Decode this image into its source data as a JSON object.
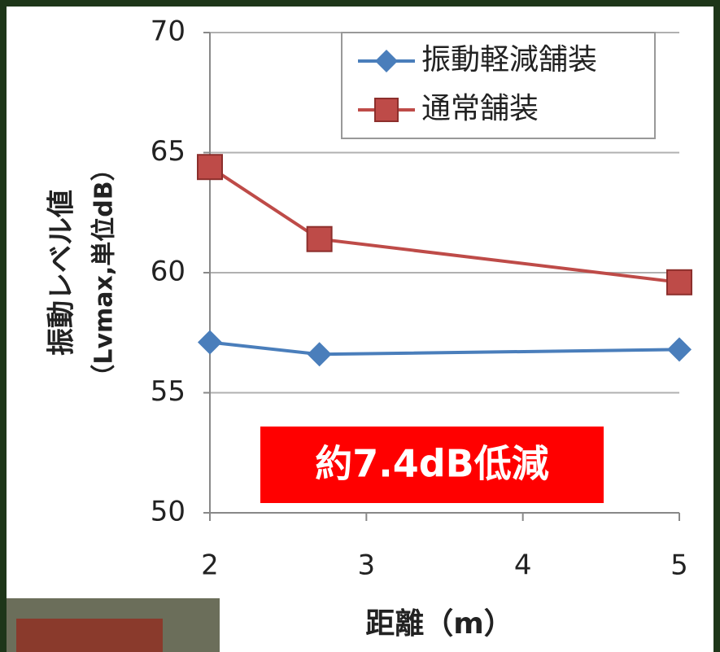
{
  "chart_data": {
    "type": "line",
    "ylabel": [
      "振動レベル値",
      "（Lvmax,単位dB）"
    ],
    "xlabel": "距離（m）",
    "annotation": "約7.4dB低減",
    "series": [
      {
        "name": "振動軽減舗装",
        "color": "#4a7ebb",
        "marker": "diamond",
        "x": [
          2,
          2.7,
          5
        ],
        "values": [
          57.1,
          56.6,
          56.8
        ]
      },
      {
        "name": "通常舗装",
        "color": "#be4b48",
        "marker": "square",
        "x": [
          2,
          2.7,
          5
        ],
        "values": [
          64.4,
          61.4,
          59.6
        ]
      }
    ],
    "xlim": [
      2,
      5
    ],
    "xticks": [
      2,
      3,
      4,
      5
    ],
    "ylim": [
      50,
      70
    ],
    "yticks": [
      50,
      55,
      60,
      65,
      70
    ],
    "grid": true,
    "legend": "upper right"
  }
}
